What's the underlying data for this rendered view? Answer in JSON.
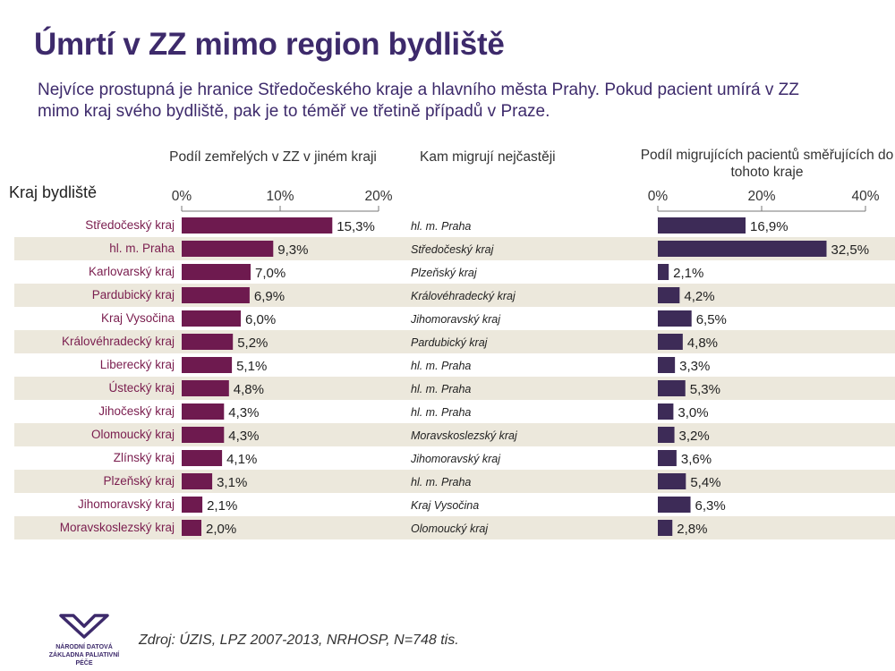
{
  "title": "Úmrtí v ZZ mimo region bydliště",
  "subtitle": "Nejvíce prostupná je hranice Středočeského kraje a hlavního města Prahy. Pokud pacient umírá v ZZ mimo kraj svého bydliště, pak je to téměř ve třetině případů v Praze.",
  "headers": {
    "left_chart": "Podíl zemřelých v ZZ v jiném kraji",
    "middle": "Kam migrují nejčastěji",
    "right_chart": "Podíl migrujících pacientů směřujících do tohoto kraje",
    "region_col": "Kraj bydliště"
  },
  "source": "Zdroj: ÚZIS, LPZ 2007-2013, NRHOSP, N=748 tis.",
  "logo": {
    "line1": "NÁRODNÍ DATOVÁ",
    "line2": "ZÁKLADNA PALIATIVNÍ PÉČE"
  },
  "colors": {
    "left_bar": "#6e1a4f",
    "right_bar": "#3d2b57",
    "title": "#3d2a6b",
    "row_shade": "#ece8dc",
    "region_text": "#7a1d4e"
  },
  "chart_data": [
    {
      "type": "bar",
      "orientation": "horizontal",
      "title": "Podíl zemřelých v ZZ v jiném kraji",
      "categories": [
        "Středočeský kraj",
        "hl. m. Praha",
        "Karlovarský kraj",
        "Pardubický kraj",
        "Kraj Vysočina",
        "Královéhradecký kraj",
        "Liberecký kraj",
        "Ústecký kraj",
        "Jihočeský kraj",
        "Olomoucký kraj",
        "Zlínský kraj",
        "Plzeňský kraj",
        "Jihomoravský kraj",
        "Moravskoslezský kraj"
      ],
      "values": [
        15.3,
        9.3,
        7.0,
        6.9,
        6.0,
        5.2,
        5.1,
        4.8,
        4.3,
        4.3,
        4.1,
        3.1,
        2.1,
        2.0
      ],
      "labels": [
        "15,3%",
        "9,3%",
        "7,0%",
        "6,9%",
        "6,0%",
        "5,2%",
        "5,1%",
        "4,8%",
        "4,3%",
        "4,3%",
        "4,1%",
        "3,1%",
        "2,1%",
        "2,0%"
      ],
      "xlim": [
        0,
        20
      ],
      "ticks": [
        "0%",
        "10%",
        "20%"
      ]
    },
    {
      "type": "bar",
      "orientation": "horizontal",
      "title": "Podíl migrujících pacientů směřujících do tohoto kraje",
      "categories": [
        "hl. m. Praha",
        "Středočeský kraj",
        "Plzeňský kraj",
        "Královéhradecký kraj",
        "Jihomoravský kraj",
        "Pardubický kraj",
        "hl. m. Praha",
        "hl. m. Praha",
        "hl. m. Praha",
        "Moravskoslezský kraj",
        "Jihomoravský kraj",
        "hl. m. Praha",
        "Kraj Vysočina",
        "Olomoucký kraj"
      ],
      "values": [
        16.9,
        32.5,
        2.1,
        4.2,
        6.5,
        4.8,
        3.3,
        5.3,
        3.0,
        3.2,
        3.6,
        5.4,
        6.3,
        2.8
      ],
      "labels": [
        "16,9%",
        "32,5%",
        "2,1%",
        "4,2%",
        "6,5%",
        "4,8%",
        "3,3%",
        "5,3%",
        "3,0%",
        "3,2%",
        "3,6%",
        "5,4%",
        "6,3%",
        "2,8%"
      ],
      "xlim": [
        0,
        40
      ],
      "ticks": [
        "0%",
        "20%",
        "40%"
      ]
    }
  ]
}
